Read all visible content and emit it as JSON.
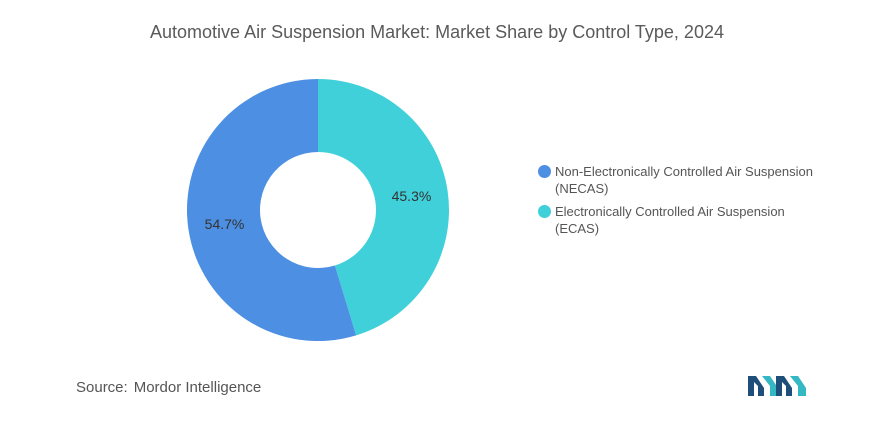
{
  "title": "Automotive Air Suspension Market: Market Share by Control Type, 2024",
  "source": {
    "label": "Source:",
    "value": "Mordor Intelligence"
  },
  "logo_icon": "mordor-intelligence-logo",
  "colors": {
    "series_1": "#4d8fe3",
    "series_2": "#3fd0d9"
  },
  "chart_data": {
    "type": "pie",
    "style": "donut",
    "title": "Automotive Air Suspension Market: Market Share by Control Type, 2024",
    "legend_position": "right",
    "slices": [
      {
        "label": "Electronically Controlled Air Suspension (ECAS)",
        "value": 45.3,
        "display": "45.3%",
        "color": "#3fd0d9"
      },
      {
        "label": "Non-Electronically Controlled Air Suspension (NECAS)",
        "value": 54.7,
        "display": "54.7%",
        "color": "#4d8fe3"
      }
    ],
    "legend": [
      {
        "label": "Non-Electronically Controlled Air Suspension (NECAS)",
        "color": "#4d8fe3"
      },
      {
        "label": "Electronically Controlled Air Suspension (ECAS)",
        "color": "#3fd0d9"
      }
    ]
  }
}
